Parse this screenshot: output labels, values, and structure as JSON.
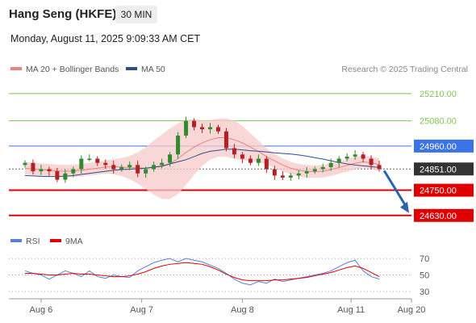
{
  "header": {
    "instrument": "Hang Seng (HKFE)",
    "timeframe": "30 MIN",
    "timestamp": "Monday, August 11, 2025 9:09:33 AM CET"
  },
  "price_legend": [
    {
      "label": "MA 20 + Bollinger Bands",
      "color": "#f08080"
    },
    {
      "label": "MA 50",
      "color": "#2b4f8c"
    }
  ],
  "rsi_legend": [
    {
      "label": "RSI",
      "color": "#5b7fd9"
    },
    {
      "label": "9MA",
      "color": "#e00000"
    }
  ],
  "credit": "Research © 2025 Trading Central",
  "colors": {
    "bull": "#2e8b2e",
    "bear": "#b22222",
    "resistance": "#7ec850",
    "pivot": "#3b73e8",
    "support": "#e00000",
    "bollinger": "#f7c9c9",
    "ma20": "#f08080",
    "ma50": "#2b4f8c",
    "current": "#333333",
    "arrow": "#2b63b0"
  },
  "chart_data": [
    {
      "type": "candlestick",
      "x_ticks": [
        "Aug 6",
        "Aug 7",
        "Aug 8",
        "Aug 11",
        "Aug 20"
      ],
      "x_tick_positions": [
        2,
        14.5,
        27,
        40.5,
        48
      ],
      "x_range": [
        -2,
        48
      ],
      "ylim": [
        24560,
        25290
      ],
      "levels": [
        {
          "value": 25210.0,
          "label": "25210.00",
          "kind": "resistance"
        },
        {
          "value": 25080.0,
          "label": "25080.00",
          "kind": "resistance"
        },
        {
          "value": 24960.0,
          "label": "24960.00",
          "kind": "pivot"
        },
        {
          "value": 24851.0,
          "label": "24851.00",
          "kind": "current"
        },
        {
          "value": 24750.0,
          "label": "24750.00",
          "kind": "support"
        },
        {
          "value": 24630.0,
          "label": "24630.00",
          "kind": "support"
        }
      ],
      "close": [
        24880,
        24840,
        24850,
        24840,
        24800,
        24830,
        24850,
        24900,
        24900,
        24880,
        24870,
        24850,
        24860,
        24870,
        24830,
        24850,
        24870,
        24880,
        24920,
        25010,
        25080,
        25050,
        25040,
        25050,
        25030,
        24950,
        24920,
        24900,
        24880,
        24900,
        24850,
        24820,
        24810,
        24820,
        24830,
        24840,
        24850,
        24860,
        24880,
        24900,
        24910,
        24920,
        24900,
        24870,
        24851
      ],
      "ma20": [
        24855,
        24850,
        24848,
        24845,
        24842,
        24840,
        24842,
        24845,
        24850,
        24855,
        24860,
        24862,
        24860,
        24858,
        24856,
        24855,
        24858,
        24862,
        24875,
        24900,
        24930,
        24955,
        24975,
        24990,
        25000,
        25000,
        24990,
        24975,
        24955,
        24935,
        24910,
        24890,
        24870,
        24855,
        24845,
        24840,
        24838,
        24840,
        24848,
        24858,
        24868,
        24878,
        24885,
        24880,
        24872
      ],
      "ma50": [
        24820,
        24818,
        24816,
        24815,
        24815,
        24817,
        24820,
        24825,
        24830,
        24835,
        24840,
        24845,
        24848,
        24850,
        24852,
        24855,
        24860,
        24865,
        24875,
        24885,
        24895,
        24910,
        24925,
        24935,
        24940,
        24945,
        24945,
        24942,
        24938,
        24935,
        24932,
        24928,
        24925,
        24922,
        24918,
        24912,
        24905,
        24898,
        24890,
        24882,
        24875,
        24870,
        24866,
        24862,
        24858
      ],
      "forecast": {
        "from": 24851,
        "to": 24630
      }
    },
    {
      "type": "line",
      "title": "RSI",
      "y_ticks": [
        70,
        50,
        30
      ],
      "ylim": [
        25,
        80
      ],
      "series": [
        {
          "name": "RSI",
          "values": [
            55,
            52,
            50,
            45,
            50,
            55,
            52,
            48,
            55,
            48,
            46,
            50,
            48,
            47,
            55,
            60,
            65,
            68,
            70,
            66,
            70,
            68,
            66,
            62,
            58,
            52,
            45,
            40,
            38,
            42,
            40,
            45,
            42,
            44,
            46,
            48,
            50,
            52,
            55,
            60,
            65,
            68,
            55,
            48,
            45
          ]
        },
        {
          "name": "9MA",
          "values": [
            52,
            52,
            51,
            50,
            50,
            51,
            52,
            51,
            51,
            50,
            49,
            48,
            48,
            49,
            51,
            54,
            58,
            61,
            63,
            64,
            65,
            64,
            63,
            60,
            56,
            51,
            47,
            44,
            43,
            43,
            43,
            44,
            44,
            45,
            46,
            47,
            49,
            51,
            53,
            56,
            59,
            61,
            58,
            53,
            48
          ]
        }
      ]
    }
  ]
}
